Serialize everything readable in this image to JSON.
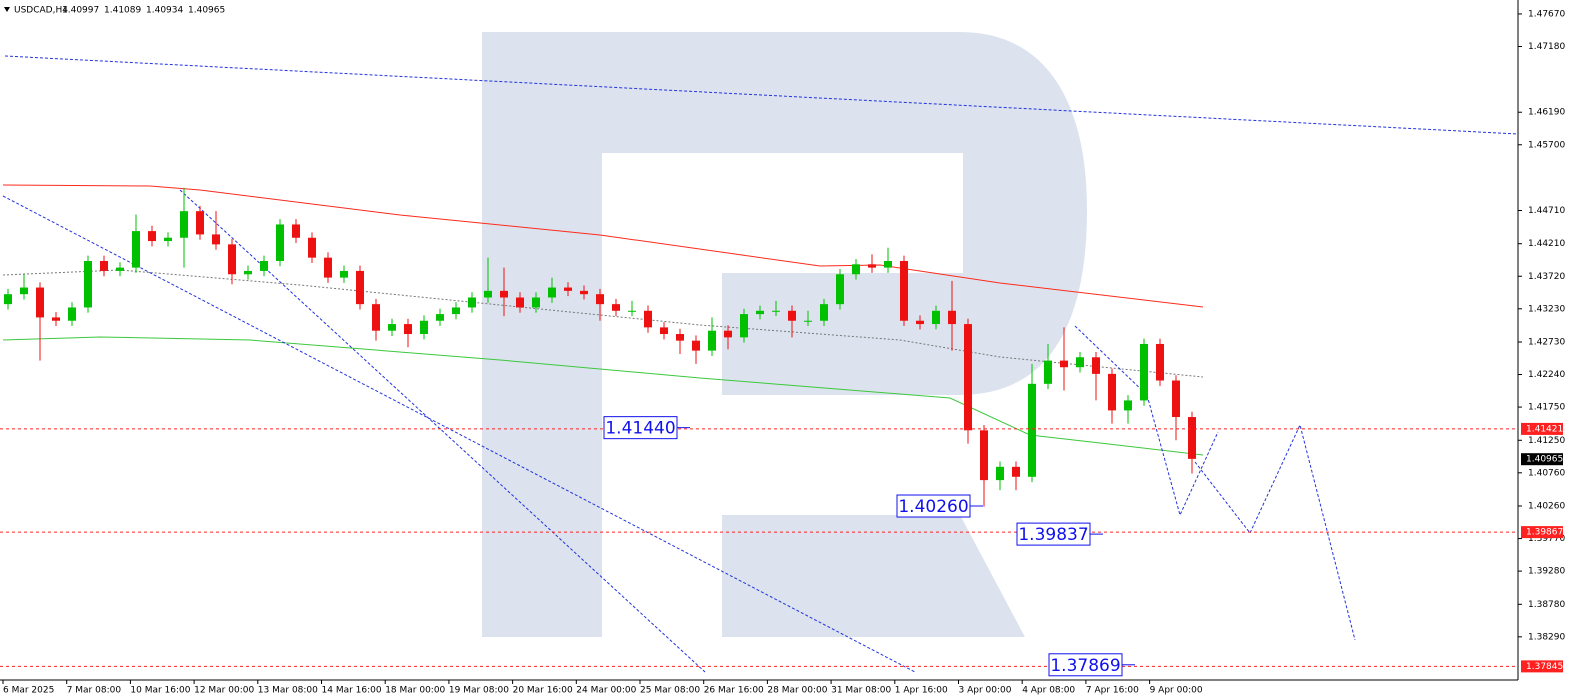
{
  "header": {
    "symbol": "USDCAD,H4",
    "values": [
      "1.40997",
      "1.41089",
      "1.40934",
      "1.40965"
    ]
  },
  "price_axis": {
    "ylim": [
      1.3764,
      1.4788
    ],
    "ticks": [
      {
        "value": 1.4767,
        "label": "1.47670"
      },
      {
        "value": 1.4718,
        "label": "1.47180"
      },
      {
        "value": 1.4619,
        "label": "1.46190"
      },
      {
        "value": 1.457,
        "label": "1.45700"
      },
      {
        "value": 1.4471,
        "label": "1.44710"
      },
      {
        "value": 1.4421,
        "label": "1.44210"
      },
      {
        "value": 1.4372,
        "label": "1.43720"
      },
      {
        "value": 1.4323,
        "label": "1.43230"
      },
      {
        "value": 1.4273,
        "label": "1.42730"
      },
      {
        "value": 1.4224,
        "label": "1.42240"
      },
      {
        "value": 1.4175,
        "label": "1.41750"
      },
      {
        "value": 1.4125,
        "label": "1.41250"
      },
      {
        "value": 1.4076,
        "label": "1.40760"
      },
      {
        "value": 1.4026,
        "label": "1.40260"
      },
      {
        "value": 1.3977,
        "label": "1.39770"
      },
      {
        "value": 1.3928,
        "label": "1.39280"
      },
      {
        "value": 1.3878,
        "label": "1.38780"
      },
      {
        "value": 1.3829,
        "label": "1.38290"
      }
    ]
  },
  "price_tags": [
    {
      "value": 1.41421,
      "color": "#ff2020"
    },
    {
      "value": 1.40965,
      "color": "#000000"
    },
    {
      "value": 1.39867,
      "color": "#ff2020"
    },
    {
      "value": 1.37845,
      "color": "#ff2020"
    }
  ],
  "time_axis": [
    "6 Mar 2025",
    "7 Mar 08:00",
    "10 Mar 16:00",
    "12 Mar 00:00",
    "13 Mar 08:00",
    "14 Mar 16:00",
    "18 Mar 00:00",
    "19 Mar 08:00",
    "20 Mar 16:00",
    "24 Mar 00:00",
    "25 Mar 08:00",
    "26 Mar 16:00",
    "28 Mar 00:00",
    "31 Mar 08:00",
    "1 Apr 16:00",
    "3 Apr 00:00",
    "4 Apr 08:00",
    "7 Apr 16:00",
    "9 Apr 00:00"
  ],
  "annotations": [
    {
      "value": 1.4144,
      "label": "1.41440"
    },
    {
      "value": 1.4026,
      "label": "1.40260"
    },
    {
      "value": 1.39837,
      "label": "1.39837"
    },
    {
      "value": 1.37869,
      "label": "1.37869"
    }
  ],
  "colors": {
    "bull": "#00c000",
    "bear": "#ee1111"
  },
  "candles": [
    [
      1.433,
      1.4353,
      1.4322,
      1.4345
    ],
    [
      1.4345,
      1.4375,
      1.4337,
      1.4355
    ],
    [
      1.4355,
      1.4363,
      1.4245,
      1.431
    ],
    [
      1.431,
      1.4318,
      1.4297,
      1.4305
    ],
    [
      1.4305,
      1.4333,
      1.4297,
      1.4325
    ],
    [
      1.4325,
      1.4403,
      1.4317,
      1.4395
    ],
    [
      1.4395,
      1.4403,
      1.4372,
      1.438
    ],
    [
      1.438,
      1.4393,
      1.4372,
      1.4385
    ],
    [
      1.4385,
      1.4465,
      1.4377,
      1.444
    ],
    [
      1.444,
      1.4448,
      1.4417,
      1.4425
    ],
    [
      1.4425,
      1.4438,
      1.4417,
      1.443
    ],
    [
      1.443,
      1.4505,
      1.4385,
      1.447
    ],
    [
      1.447,
      1.4478,
      1.4427,
      1.4435
    ],
    [
      1.4435,
      1.447,
      1.4412,
      1.442
    ],
    [
      1.442,
      1.4428,
      1.436,
      1.4375
    ],
    [
      1.4375,
      1.4388,
      1.4367,
      1.438
    ],
    [
      1.438,
      1.4403,
      1.4372,
      1.4395
    ],
    [
      1.4395,
      1.4458,
      1.4387,
      1.445
    ],
    [
      1.445,
      1.4458,
      1.4422,
      1.443
    ],
    [
      1.443,
      1.4438,
      1.4392,
      1.44
    ],
    [
      1.44,
      1.4408,
      1.4362,
      1.437
    ],
    [
      1.437,
      1.4388,
      1.4362,
      1.438
    ],
    [
      1.438,
      1.4388,
      1.4322,
      1.433
    ],
    [
      1.433,
      1.4338,
      1.4275,
      1.429
    ],
    [
      1.429,
      1.4308,
      1.4282,
      1.43
    ],
    [
      1.43,
      1.4308,
      1.4265,
      1.4285
    ],
    [
      1.4285,
      1.4313,
      1.4277,
      1.4305
    ],
    [
      1.4305,
      1.4323,
      1.4297,
      1.4315
    ],
    [
      1.4315,
      1.4333,
      1.4307,
      1.4325
    ],
    [
      1.4325,
      1.4348,
      1.4317,
      1.434
    ],
    [
      1.434,
      1.44,
      1.4332,
      1.435
    ],
    [
      1.435,
      1.4385,
      1.4312,
      1.434
    ],
    [
      1.434,
      1.4348,
      1.4317,
      1.4325
    ],
    [
      1.4325,
      1.4348,
      1.4317,
      1.434
    ],
    [
      1.434,
      1.437,
      1.4332,
      1.4355
    ],
    [
      1.4355,
      1.4363,
      1.4342,
      1.435
    ],
    [
      1.435,
      1.4358,
      1.4337,
      1.4345
    ],
    [
      1.4345,
      1.4353,
      1.4305,
      1.433
    ],
    [
      1.433,
      1.4338,
      1.4312,
      1.432
    ],
    [
      1.432,
      1.4335,
      1.4312,
      1.432
    ],
    [
      1.432,
      1.4328,
      1.4287,
      1.4295
    ],
    [
      1.4295,
      1.4303,
      1.4277,
      1.4285
    ],
    [
      1.4285,
      1.4293,
      1.4255,
      1.4275
    ],
    [
      1.4275,
      1.4283,
      1.424,
      1.426
    ],
    [
      1.426,
      1.431,
      1.4252,
      1.429
    ],
    [
      1.429,
      1.4298,
      1.4262,
      1.428
    ],
    [
      1.428,
      1.4323,
      1.4272,
      1.4315
    ],
    [
      1.4315,
      1.4328,
      1.4307,
      1.432
    ],
    [
      1.432,
      1.4335,
      1.4312,
      1.432
    ],
    [
      1.432,
      1.4328,
      1.428,
      1.4305
    ],
    [
      1.4305,
      1.432,
      1.4297,
      1.4305
    ],
    [
      1.4305,
      1.4338,
      1.4297,
      1.433
    ],
    [
      1.433,
      1.4383,
      1.4322,
      1.4375
    ],
    [
      1.4375,
      1.4398,
      1.4367,
      1.439
    ],
    [
      1.439,
      1.4405,
      1.4377,
      1.4385
    ],
    [
      1.4385,
      1.4415,
      1.4377,
      1.4395
    ],
    [
      1.4395,
      1.4403,
      1.4297,
      1.4305
    ],
    [
      1.4305,
      1.4313,
      1.4292,
      1.43
    ],
    [
      1.43,
      1.4328,
      1.4292,
      1.432
    ],
    [
      1.432,
      1.4365,
      1.426,
      1.43
    ],
    [
      1.43,
      1.4308,
      1.412,
      1.414
    ],
    [
      1.414,
      1.4148,
      1.4025,
      1.4065
    ],
    [
      1.4065,
      1.4093,
      1.405,
      1.4085
    ],
    [
      1.4085,
      1.4093,
      1.405,
      1.407
    ],
    [
      1.407,
      1.424,
      1.4062,
      1.421
    ],
    [
      1.421,
      1.427,
      1.4202,
      1.4245
    ],
    [
      1.4245,
      1.4295,
      1.42,
      1.4235
    ],
    [
      1.4235,
      1.4258,
      1.4227,
      1.425
    ],
    [
      1.425,
      1.4258,
      1.4185,
      1.4225
    ],
    [
      1.4225,
      1.4233,
      1.415,
      1.417
    ],
    [
      1.417,
      1.4193,
      1.415,
      1.4185
    ],
    [
      1.4185,
      1.4278,
      1.4177,
      1.427
    ],
    [
      1.427,
      1.4278,
      1.4207,
      1.4215
    ],
    [
      1.4215,
      1.4223,
      1.4125,
      1.416
    ],
    [
      1.416,
      1.4168,
      1.4075,
      1.4097
    ]
  ]
}
